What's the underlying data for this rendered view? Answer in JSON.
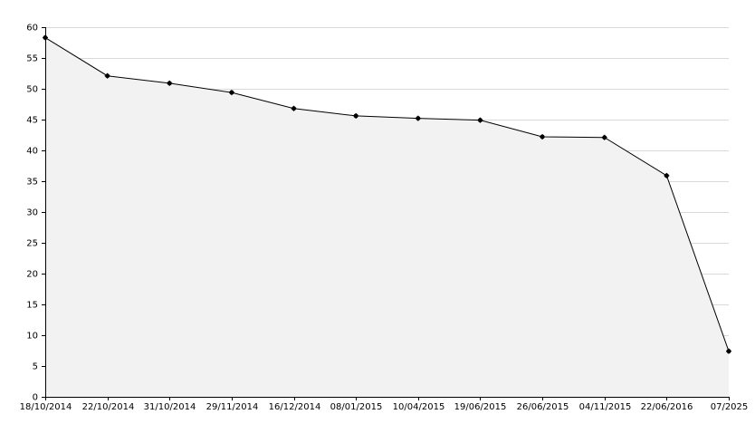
{
  "chart_data": {
    "type": "area",
    "title": "",
    "xlabel": "",
    "ylabel": "",
    "grid": true,
    "legend": "none",
    "ylim": [
      0,
      60
    ],
    "yticks": [
      0,
      5,
      10,
      15,
      20,
      25,
      30,
      35,
      40,
      45,
      50,
      55,
      60
    ],
    "categories": [
      "18/10/2014",
      "22/10/2014",
      "31/10/2014",
      "29/11/2014",
      "16/12/2014",
      "08/01/2015",
      "10/04/2015",
      "19/06/2015",
      "26/06/2015",
      "04/11/2015",
      "22/06/2016",
      "07/2025"
    ],
    "series": [
      {
        "values": [
          58.3,
          52.1,
          50.9,
          49.4,
          46.8,
          45.6,
          45.2,
          44.9,
          42.2,
          42.1,
          35.9,
          7.4
        ]
      }
    ],
    "colors": {
      "fill": "#f2f2f2",
      "line": "#000000",
      "marker": "#000000",
      "grid": "#d9d9d9",
      "axis": "#000000"
    }
  }
}
